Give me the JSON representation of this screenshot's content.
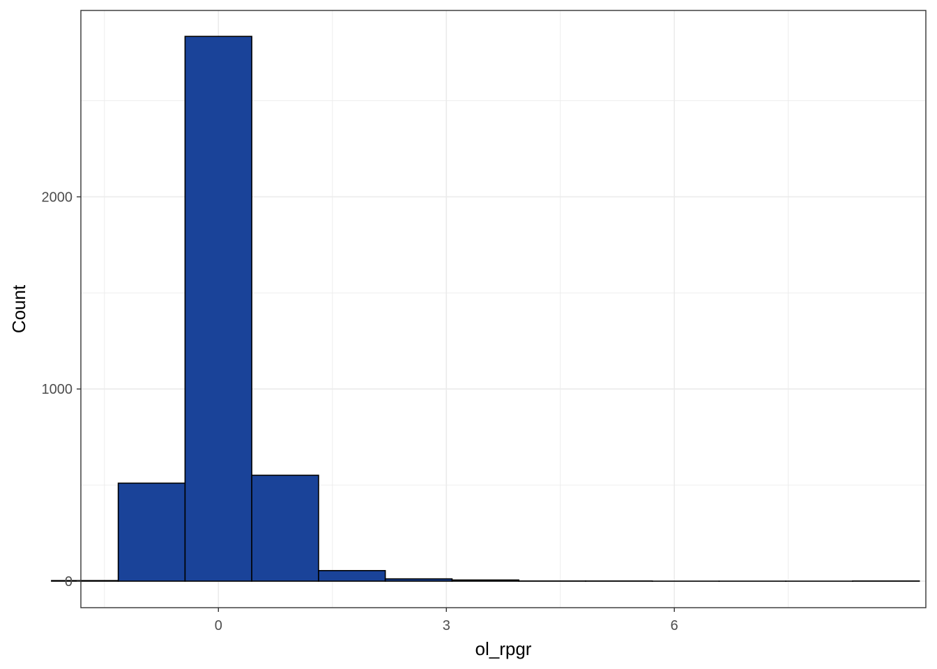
{
  "chart_data": {
    "type": "bar",
    "subtype": "histogram",
    "xlabel": "ol_rpgr",
    "ylabel": "Count",
    "xlim": [
      -1.81,
      9.31
    ],
    "ylim": [
      -138,
      2970
    ],
    "x_ticks": [
      0,
      3,
      6
    ],
    "x_tick_labels": [
      "0",
      "3",
      "6"
    ],
    "y_ticks": [
      0,
      1000,
      2000
    ],
    "y_tick_labels": [
      "0",
      "1000",
      "2000"
    ],
    "x_minor_ticks": [
      -1.5,
      1.5,
      4.5,
      7.5
    ],
    "y_minor_ticks": [
      500,
      1500,
      2500
    ],
    "grid": true,
    "bin_width": 0.8785,
    "bins": [
      {
        "start": -2.196,
        "end": -1.318,
        "count": 3
      },
      {
        "start": -1.318,
        "end": -0.439,
        "count": 510
      },
      {
        "start": -0.439,
        "end": 0.439,
        "count": 2835
      },
      {
        "start": 0.439,
        "end": 1.318,
        "count": 551
      },
      {
        "start": 1.318,
        "end": 2.196,
        "count": 55
      },
      {
        "start": 2.196,
        "end": 3.075,
        "count": 12
      },
      {
        "start": 3.075,
        "end": 3.953,
        "count": 6
      },
      {
        "start": 3.953,
        "end": 4.832,
        "count": 1
      },
      {
        "start": 4.832,
        "end": 5.71,
        "count": 1
      },
      {
        "start": 5.71,
        "end": 6.589,
        "count": 0
      },
      {
        "start": 6.589,
        "end": 7.467,
        "count": 0
      },
      {
        "start": 7.467,
        "end": 8.346,
        "count": 0
      },
      {
        "start": 8.346,
        "end": 9.224,
        "count": 1
      }
    ],
    "colors": {
      "fill": "#1a4399",
      "outline": "#000000",
      "grid": "#ebebeb",
      "panel_border": "#333333",
      "tick_label": "#4d4d4d"
    }
  }
}
